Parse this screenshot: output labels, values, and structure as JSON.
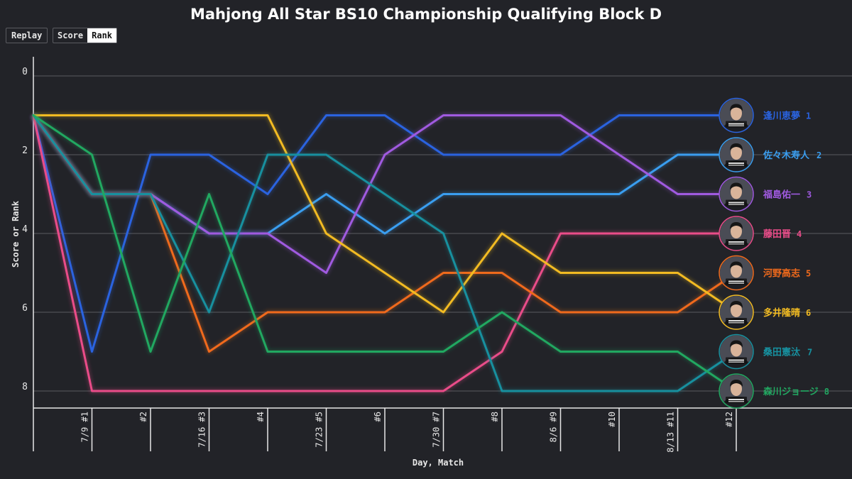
{
  "title": "Mahjong All Star BS10 Championship Qualifying Block D",
  "controls": {
    "replay_label": "Replay",
    "score_label": "Score",
    "rank_label": "Rank",
    "active_view": "Rank"
  },
  "chart_data": {
    "type": "line",
    "title": "Mahjong All Star BS10 Championship Qualifying Block D",
    "xlabel": "Day, Match",
    "ylabel": "Score or Rank",
    "x": [
      "",
      "7/9 #1",
      "#2",
      "7/16 #3",
      "#4",
      "7/23 #5",
      "#6",
      "7/30 #7",
      "#8",
      "8/6 #9",
      "#10",
      "8/13 #11",
      "#12"
    ],
    "y_ticks": [
      0,
      2,
      4,
      6,
      8
    ],
    "ylim": [
      0,
      8
    ],
    "y_inverted": true,
    "grid": "horizontal",
    "series": [
      {
        "name": "逢川恵夢",
        "rank": 1,
        "color": "#2a63e0",
        "values": [
          1,
          7,
          2,
          2,
          3,
          1,
          1,
          2,
          2,
          2,
          1,
          1,
          1
        ]
      },
      {
        "name": "佐々木寿人",
        "rank": 2,
        "color": "#3a9ef0",
        "values": [
          1,
          3,
          3,
          4,
          4,
          3,
          4,
          3,
          3,
          3,
          3,
          2,
          2
        ]
      },
      {
        "name": "福島佑一",
        "rank": 3,
        "color": "#a05ae0",
        "values": [
          1,
          3,
          3,
          4,
          4,
          5,
          2,
          1,
          1,
          1,
          2,
          3,
          3
        ]
      },
      {
        "name": "藤田晋",
        "rank": 4,
        "color": "#ea4c89",
        "values": [
          1,
          8,
          8,
          8,
          8,
          8,
          8,
          8,
          7,
          4,
          4,
          4,
          4
        ]
      },
      {
        "name": "河野高志",
        "rank": 5,
        "color": "#f06a1c",
        "values": [
          1,
          3,
          3,
          7,
          6,
          6,
          6,
          5,
          5,
          6,
          6,
          6,
          5
        ]
      },
      {
        "name": "多井隆晴",
        "rank": 6,
        "color": "#f2bb22",
        "values": [
          1,
          1,
          1,
          1,
          1,
          4,
          5,
          6,
          4,
          5,
          5,
          5,
          6
        ]
      },
      {
        "name": "桑田憲汰",
        "rank": 7,
        "color": "#17909f",
        "values": [
          1,
          3,
          3,
          6,
          2,
          2,
          3,
          4,
          8,
          8,
          8,
          8,
          7
        ]
      },
      {
        "name": "森川ジョージ",
        "rank": 8,
        "color": "#21a861",
        "values": [
          1,
          2,
          7,
          3,
          7,
          7,
          7,
          7,
          6,
          7,
          7,
          7,
          8
        ]
      }
    ],
    "colors": {
      "background": "#222328",
      "grid": "#5a5b60",
      "axis": "#e8e8e8",
      "text": "#e8e8e8"
    }
  }
}
